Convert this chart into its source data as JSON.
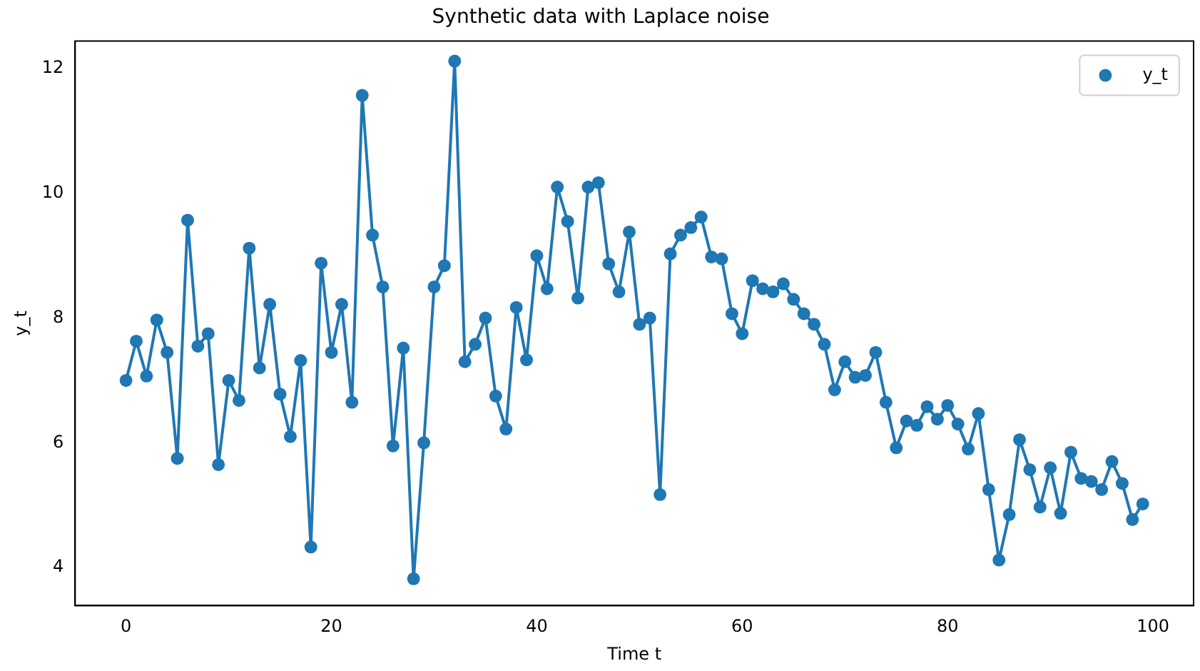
{
  "chart_data": {
    "type": "line",
    "title": "Synthetic data with Laplace noise",
    "xlabel": "Time t",
    "ylabel": "y_t",
    "x": [
      0,
      1,
      2,
      3,
      4,
      5,
      6,
      7,
      8,
      9,
      10,
      11,
      12,
      13,
      14,
      15,
      16,
      17,
      18,
      19,
      20,
      21,
      22,
      23,
      24,
      25,
      26,
      27,
      28,
      29,
      30,
      31,
      32,
      33,
      34,
      35,
      36,
      37,
      38,
      39,
      40,
      41,
      42,
      43,
      44,
      45,
      46,
      47,
      48,
      49,
      50,
      51,
      52,
      53,
      54,
      55,
      56,
      57,
      58,
      59,
      60,
      61,
      62,
      63,
      64,
      65,
      66,
      67,
      68,
      69,
      70,
      71,
      72,
      73,
      74,
      75,
      76,
      77,
      78,
      79,
      80,
      81,
      82,
      83,
      84,
      85,
      86,
      87,
      88,
      89,
      90,
      91,
      92,
      93,
      94,
      95,
      96,
      97,
      98,
      99
    ],
    "series": [
      {
        "name": "y_t",
        "color": "#1f77b4",
        "values": [
          7.0,
          7.63,
          7.07,
          7.97,
          7.45,
          5.75,
          9.57,
          7.55,
          7.75,
          5.65,
          7.0,
          6.68,
          9.12,
          7.2,
          8.22,
          6.78,
          6.1,
          7.32,
          4.33,
          8.88,
          7.45,
          8.22,
          6.65,
          11.57,
          9.33,
          8.5,
          5.95,
          7.52,
          3.82,
          6.0,
          8.5,
          8.84,
          12.12,
          7.3,
          7.58,
          8.0,
          6.75,
          6.22,
          8.17,
          7.33,
          9.0,
          8.47,
          10.1,
          9.55,
          8.32,
          10.1,
          10.17,
          8.87,
          8.42,
          9.38,
          7.9,
          8.0,
          5.17,
          9.03,
          9.33,
          9.45,
          9.62,
          8.98,
          8.95,
          8.07,
          7.75,
          8.6,
          8.47,
          8.42,
          8.55,
          8.3,
          8.07,
          7.9,
          7.58,
          6.85,
          7.3,
          7.05,
          7.08,
          7.45,
          6.65,
          5.92,
          6.35,
          6.28,
          6.58,
          6.38,
          6.6,
          6.3,
          5.9,
          6.47,
          5.25,
          4.12,
          4.85,
          6.05,
          5.57,
          4.97,
          5.6,
          4.87,
          5.85,
          5.43,
          5.38,
          5.25,
          5.7,
          5.35,
          4.77,
          5.02
        ]
      }
    ],
    "xlim": [
      -4.95,
      103.95
    ],
    "xticks": [
      0,
      20,
      40,
      60,
      80,
      100
    ],
    "ylim": [
      3.39,
      12.44
    ],
    "yticks": [
      4,
      6,
      8,
      10,
      12
    ],
    "marker": "circle",
    "line_style": "solid",
    "grid": false,
    "legend": "top right"
  }
}
